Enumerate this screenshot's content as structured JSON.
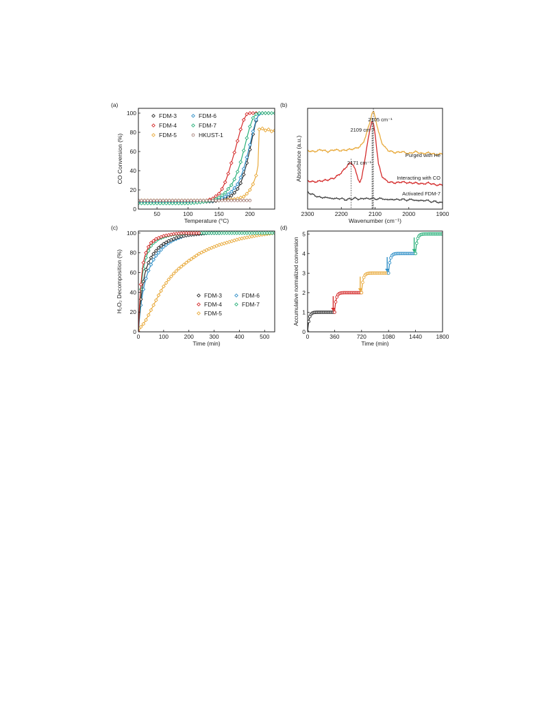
{
  "chart_data": [
    {
      "panel_label": "(a)",
      "type": "line",
      "xlabel": "Temperature (°C)",
      "ylabel": "CO Conversion (%)",
      "xlim": [
        20,
        240
      ],
      "ylim": [
        0,
        105
      ],
      "xticks": [
        50,
        100,
        150,
        200
      ],
      "yticks": [
        0,
        20,
        40,
        60,
        80,
        100
      ],
      "legend_position": "top-left",
      "series": [
        {
          "name": "FDM-3",
          "color": "#2b2b2b",
          "marker": "diamond",
          "x": [
            20,
            40,
            60,
            80,
            100,
            120,
            140,
            150,
            160,
            170,
            175,
            180,
            185,
            190,
            195,
            200,
            205,
            210,
            215,
            220,
            230
          ],
          "y": [
            7,
            7,
            7,
            7,
            7,
            7.5,
            8,
            9,
            11,
            14,
            17,
            21,
            27,
            36,
            48,
            62,
            78,
            92,
            100,
            100,
            100
          ]
        },
        {
          "name": "FDM-4",
          "color": "#d42a2a",
          "marker": "diamond",
          "x": [
            20,
            40,
            60,
            80,
            100,
            120,
            130,
            140,
            150,
            155,
            160,
            165,
            170,
            175,
            180,
            185,
            190,
            195,
            200,
            210
          ],
          "y": [
            8,
            8,
            8,
            8,
            8,
            8.5,
            9,
            11,
            16,
            21,
            28,
            37,
            48,
            59,
            71,
            83,
            93,
            99,
            100,
            100
          ]
        },
        {
          "name": "FDM-5",
          "color": "#e8a93a",
          "marker": "diamond",
          "x": [
            20,
            40,
            60,
            80,
            100,
            120,
            140,
            160,
            170,
            180,
            190,
            195,
            200,
            205,
            210,
            213,
            215,
            220,
            225,
            230,
            235,
            240
          ],
          "y": [
            9,
            9,
            9,
            9,
            9,
            9,
            9,
            9.5,
            10,
            11,
            13,
            16,
            20,
            26,
            35,
            45,
            83,
            84,
            82,
            83,
            81,
            82
          ]
        },
        {
          "name": "FDM-6",
          "color": "#2f8fc7",
          "marker": "diamond",
          "x": [
            20,
            40,
            60,
            80,
            100,
            120,
            140,
            150,
            160,
            170,
            180,
            185,
            190,
            195,
            200,
            205,
            210,
            215,
            220
          ],
          "y": [
            7,
            7,
            7,
            7,
            7,
            7.5,
            8.5,
            10,
            13,
            18,
            26,
            33,
            42,
            54,
            67,
            81,
            93,
            99,
            100
          ]
        },
        {
          "name": "FDM-7",
          "color": "#29b07a",
          "marker": "diamond",
          "x": [
            20,
            40,
            60,
            80,
            100,
            120,
            140,
            150,
            160,
            170,
            175,
            180,
            185,
            190,
            195,
            200,
            205,
            210,
            215,
            220,
            230,
            240
          ],
          "y": [
            6,
            6,
            6,
            6,
            6,
            7,
            9,
            12,
            17,
            25,
            31,
            39,
            49,
            61,
            74,
            86,
            95,
            99,
            100,
            100,
            100,
            100
          ]
        },
        {
          "name": "HKUST-1",
          "color": "#a07870",
          "marker": "circle",
          "x": [
            20,
            30,
            40,
            50,
            60,
            70,
            80,
            90,
            100,
            110,
            120,
            130,
            140,
            150,
            160,
            170,
            180,
            190,
            200
          ],
          "y": [
            9,
            9,
            9,
            9,
            9,
            9,
            9,
            9,
            9,
            9,
            9,
            9,
            9,
            9,
            9,
            9,
            9,
            9,
            9
          ]
        }
      ]
    },
    {
      "panel_label": "(b)",
      "type": "line",
      "xlabel": "Wavenumber (cm⁻¹)",
      "ylabel": "Absorbance (a.u.)",
      "xlim": [
        2300,
        1900
      ],
      "xticks": [
        2300,
        2200,
        2100,
        2000,
        1900
      ],
      "y_ticks_shown": false,
      "series": [
        {
          "name": "Purged with He",
          "color": "#e8a93a",
          "x": [
            2300,
            2280,
            2260,
            2240,
            2220,
            2200,
            2180,
            2160,
            2145,
            2135,
            2125,
            2115,
            2110,
            2105,
            2100,
            2090,
            2080,
            2070,
            2060,
            2040,
            2020,
            2000,
            1980,
            1960,
            1940,
            1920,
            1900
          ],
          "y": [
            0.58,
            0.57,
            0.59,
            0.57,
            0.59,
            0.58,
            0.59,
            0.6,
            0.62,
            0.66,
            0.75,
            0.87,
            0.94,
            0.97,
            0.92,
            0.77,
            0.66,
            0.61,
            0.58,
            0.56,
            0.57,
            0.55,
            0.57,
            0.55,
            0.56,
            0.54,
            0.55
          ]
        },
        {
          "name": "Interacting with CO",
          "color": "#d42a2a",
          "x": [
            2300,
            2280,
            2260,
            2240,
            2220,
            2200,
            2190,
            2180,
            2171,
            2165,
            2160,
            2150,
            2145,
            2140,
            2130,
            2120,
            2115,
            2110,
            2105,
            2100,
            2095,
            2090,
            2080,
            2070,
            2060,
            2040,
            2020,
            2000,
            1980,
            1960,
            1940,
            1920,
            1900
          ],
          "y": [
            0.28,
            0.27,
            0.28,
            0.29,
            0.31,
            0.36,
            0.4,
            0.44,
            0.46,
            0.44,
            0.4,
            0.3,
            0.26,
            0.3,
            0.5,
            0.7,
            0.8,
            0.87,
            0.85,
            0.75,
            0.6,
            0.45,
            0.33,
            0.29,
            0.27,
            0.26,
            0.27,
            0.26,
            0.26,
            0.25,
            0.26,
            0.24,
            0.24
          ]
        },
        {
          "name": "Activated FDM-7",
          "color": "#444444",
          "x": [
            2300,
            2290,
            2280,
            2270,
            2260,
            2250,
            2240,
            2230,
            2220,
            2210,
            2200,
            2190,
            2180,
            2170,
            2160,
            2150,
            2140,
            2130,
            2120,
            2110,
            2100,
            2090,
            2080,
            2070,
            2060,
            2050,
            2040,
            2030,
            2020,
            2010,
            2000,
            1990,
            1980,
            1970,
            1960,
            1950,
            1940,
            1930,
            1920,
            1910,
            1900
          ],
          "y": [
            0.17,
            0.15,
            0.14,
            0.12,
            0.12,
            0.11,
            0.12,
            0.1,
            0.11,
            0.1,
            0.11,
            0.09,
            0.1,
            0.1,
            0.11,
            0.1,
            0.1,
            0.11,
            0.1,
            0.11,
            0.1,
            0.1,
            0.11,
            0.09,
            0.1,
            0.09,
            0.1,
            0.09,
            0.1,
            0.09,
            0.09,
            0.1,
            0.08,
            0.09,
            0.08,
            0.09,
            0.08,
            0.07,
            0.08,
            0.06,
            0.07
          ]
        }
      ],
      "peak_annotations": [
        {
          "label": "2171 cm⁻¹",
          "x": 2171
        },
        {
          "label": "2109 cm⁻¹",
          "x": 2109
        },
        {
          "label": "2105 cm⁻¹",
          "x": 2105
        }
      ]
    },
    {
      "panel_label": "(c)",
      "type": "line",
      "xlabel": "Time (min)",
      "ylabel": "H₂O₂ Decomposition (%)",
      "xlim": [
        0,
        540
      ],
      "ylim": [
        0,
        102
      ],
      "xticks": [
        0,
        100,
        200,
        300,
        400,
        500
      ],
      "yticks": [
        0,
        20,
        40,
        60,
        80,
        100
      ],
      "legend_position": "bottom-right",
      "series": [
        {
          "name": "FDM-3",
          "color": "#2b2b2b",
          "marker": "diamond",
          "x": [
            0,
            5,
            10,
            15,
            20,
            25,
            30,
            40,
            50,
            60,
            70,
            80,
            90,
            100,
            120,
            140,
            160,
            180,
            200,
            240,
            280,
            320
          ],
          "y": [
            0,
            20,
            33,
            43,
            51,
            58,
            63,
            70,
            75,
            79,
            82,
            85,
            87,
            89,
            92,
            94,
            96,
            97,
            98,
            99,
            100,
            100
          ]
        },
        {
          "name": "FDM-4",
          "color": "#d42a2a",
          "marker": "diamond",
          "x": [
            0,
            5,
            10,
            15,
            20,
            25,
            30,
            40,
            50,
            60,
            70,
            80,
            90,
            100,
            120,
            140,
            160,
            180,
            200,
            240
          ],
          "y": [
            0,
            30,
            48,
            61,
            70,
            76,
            80,
            86,
            90,
            92,
            94,
            95,
            96,
            97,
            98,
            99,
            99.5,
            100,
            100,
            100
          ]
        },
        {
          "name": "FDM-5",
          "color": "#e8a93a",
          "marker": "diamond",
          "x": [
            0,
            10,
            20,
            30,
            40,
            50,
            60,
            70,
            80,
            100,
            120,
            140,
            160,
            180,
            200,
            240,
            280,
            320,
            360,
            400,
            440,
            480,
            540
          ],
          "y": [
            0,
            5,
            8,
            12,
            17,
            22,
            27,
            32,
            37,
            46,
            53,
            59,
            64,
            68,
            72,
            79,
            84,
            88,
            91,
            94,
            96,
            98,
            100
          ]
        },
        {
          "name": "FDM-6",
          "color": "#2f8fc7",
          "marker": "diamond",
          "x": [
            0,
            5,
            10,
            15,
            20,
            25,
            30,
            40,
            50,
            60,
            70,
            80,
            90,
            100,
            120,
            140,
            160,
            180,
            200,
            240,
            280,
            320
          ],
          "y": [
            0,
            15,
            27,
            36,
            43,
            49,
            54,
            62,
            68,
            73,
            77,
            80,
            83,
            86,
            90,
            93,
            95,
            97,
            98,
            99,
            100,
            100
          ]
        },
        {
          "name": "FDM-7",
          "color": "#29b07a",
          "marker": "diamond",
          "x": [
            0,
            5,
            10,
            15,
            20,
            25,
            30,
            40,
            50,
            60,
            70,
            80,
            90,
            100,
            120,
            140,
            160,
            180,
            200,
            260,
            320,
            400,
            540
          ],
          "y": [
            0,
            26,
            43,
            55,
            64,
            70,
            75,
            82,
            87,
            90,
            92,
            94,
            95,
            96,
            97.5,
            98.5,
            99,
            99.5,
            100,
            100,
            100,
            100,
            100
          ]
        }
      ]
    },
    {
      "panel_label": "(d)",
      "type": "line",
      "xlabel": "Time (min)",
      "ylabel": "Accumulative normalized conversion",
      "xlim": [
        0,
        1800
      ],
      "ylim": [
        0,
        5.15
      ],
      "xticks": [
        0,
        360,
        720,
        1080,
        1440,
        1800
      ],
      "yticks": [
        0,
        1,
        2,
        3,
        4,
        5
      ],
      "series": [
        {
          "color": "#2b2b2b",
          "marker": "circle",
          "start": 0,
          "end": 360,
          "base": 0
        },
        {
          "color": "#d42a2a",
          "marker": "circle",
          "start": 360,
          "end": 720,
          "base": 1
        },
        {
          "color": "#e8a93a",
          "marker": "circle",
          "start": 720,
          "end": 1080,
          "base": 2
        },
        {
          "color": "#2f8fc7",
          "marker": "circle",
          "start": 1080,
          "end": 1440,
          "base": 3
        },
        {
          "color": "#29b07a",
          "marker": "circle",
          "start": 1440,
          "end": 1800,
          "base": 4
        }
      ],
      "arrows": [
        {
          "x": 360,
          "color": "#d42a2a"
        },
        {
          "x": 720,
          "color": "#e8a93a"
        },
        {
          "x": 1080,
          "color": "#2f8fc7"
        },
        {
          "x": 1440,
          "color": "#29b07a"
        }
      ]
    }
  ]
}
